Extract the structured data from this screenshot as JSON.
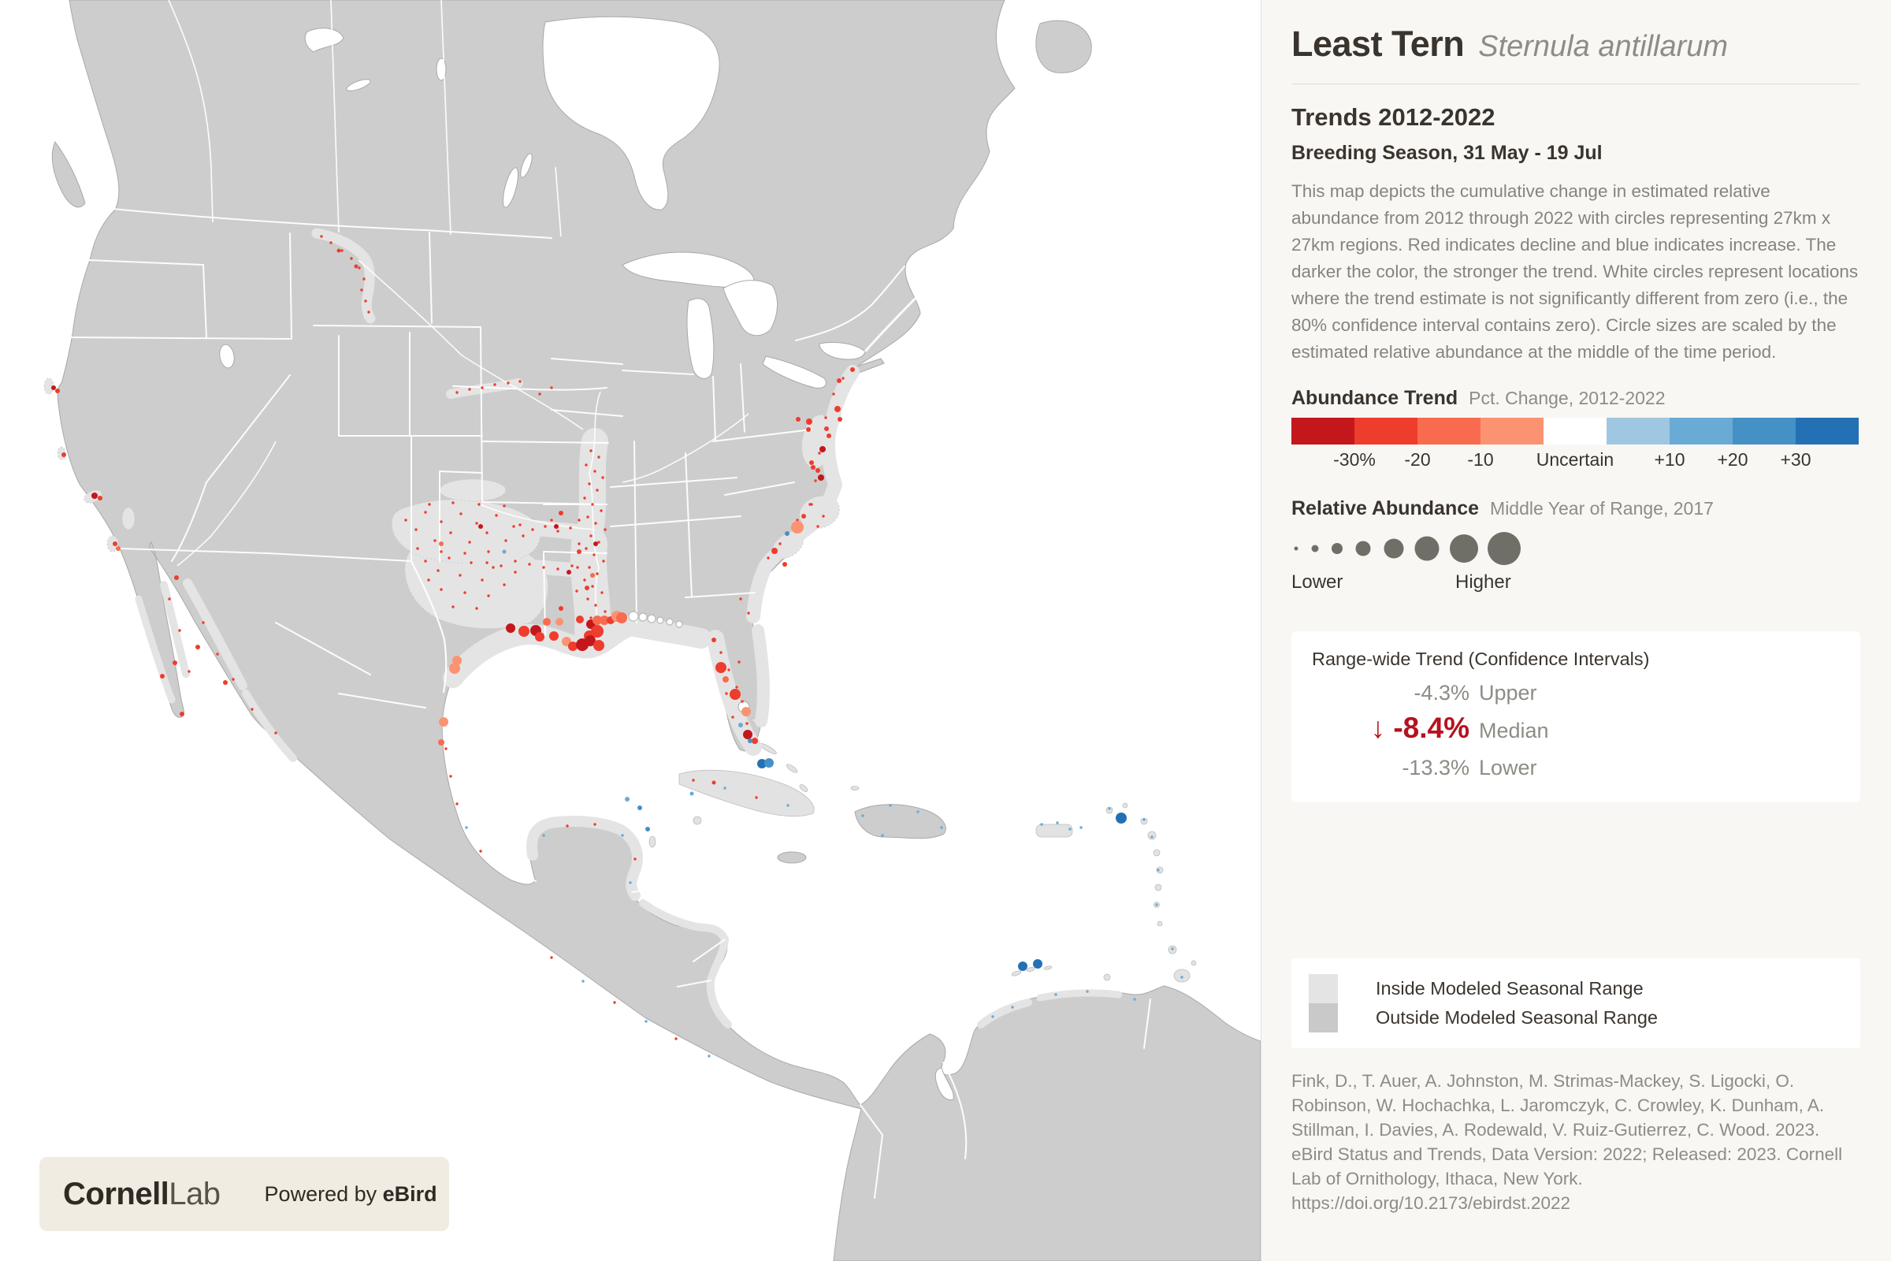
{
  "header": {
    "common_name": "Least Tern",
    "scientific_name": "Sternula antillarum",
    "trends_title": "Trends 2012-2022",
    "season": "Breeding Season, 31 May - 19 Jul"
  },
  "description": "This map depicts the cumulative change in estimated relative abundance from 2012 through 2022 with circles representing 27km x 27km regions. Red indicates decline and blue indicates increase. The darker the color, the stronger the trend. White circles represent locations where the trend estimate is not significantly different from zero (i.e., the 80% confidence interval contains zero). Circle sizes are scaled by the estimated relative abundance at the middle of the time period.",
  "abundance_trend": {
    "label": "Abundance Trend",
    "sublabel": "Pct. Change, 2012-2022",
    "scale_colors": [
      "#c4171c",
      "#ee3c2d",
      "#f96b4e",
      "#fb9372",
      "#ffffff",
      "#a0c7e1",
      "#69abd5",
      "#4591c5",
      "#2371b4"
    ],
    "tick_labels": [
      "-30%",
      "-20",
      "-10",
      "Uncertain",
      "+10",
      "+20",
      "+30"
    ]
  },
  "relative_abundance": {
    "label": "Relative Abundance",
    "sublabel": "Middle Year of Range, 2017",
    "lower_label": "Lower",
    "higher_label": "Higher",
    "circle_color": "#6f6f67"
  },
  "range_wide_trend": {
    "title": "Range-wide Trend (Confidence Intervals)",
    "upper": {
      "value": "-4.3%",
      "label": "Upper"
    },
    "median": {
      "arrow": "↓",
      "value": "-8.4%",
      "label": "Median"
    },
    "lower": {
      "value": "-13.3%",
      "label": "Lower"
    },
    "median_color": "#b5121f"
  },
  "range_legend": {
    "inside": {
      "label": "Inside Modeled Seasonal Range",
      "color": "#e4e4e4"
    },
    "outside": {
      "label": "Outside Modeled Seasonal Range",
      "color": "#c9c9c9"
    }
  },
  "citation": "Fink, D., T. Auer, A. Johnston, M. Strimas-Mackey, S. Ligocki, O. Robinson, W. Hochachka, L. Jaromczyk, C. Crowley, K. Dunham, A. Stillman, I. Davies, A. Rodewald, V. Ruiz-Gutierrez, C. Wood. 2023. eBird Status and Trends, Data Version: 2022; Released: 2023. Cornell Lab of Ornithology, Ithaca, New York. https://doi.org/10.2173/ebirdst.2022",
  "logo": {
    "brand_bold": "Cornell",
    "brand_light": "Lab",
    "powered_prefix": "Powered by ",
    "powered_bold": "eBird"
  },
  "map": {
    "land_color": "#cdcdcd",
    "inside_range_color": "#e4e4e4",
    "palette": [
      "#c4171c",
      "#ee3c2d",
      "#f96b4e",
      "#fb9372",
      "#ffffff",
      "#a0c7e1",
      "#69abd5",
      "#4591c5",
      "#2371b4"
    ],
    "points": [
      [
        648,
        797,
        6,
        0
      ],
      [
        665,
        801,
        7,
        1
      ],
      [
        680,
        800,
        7,
        0
      ],
      [
        685,
        808,
        6,
        1
      ],
      [
        703,
        807,
        6,
        1
      ],
      [
        719,
        814,
        6,
        3
      ],
      [
        727,
        820,
        6,
        1
      ],
      [
        739,
        818,
        8,
        0
      ],
      [
        748,
        807,
        7,
        1
      ],
      [
        750,
        792,
        6,
        0
      ],
      [
        758,
        787,
        6,
        2
      ],
      [
        767,
        787,
        6,
        2
      ],
      [
        775,
        787,
        5,
        1
      ],
      [
        783,
        782,
        7,
        3
      ],
      [
        758,
        801,
        8,
        1
      ],
      [
        749,
        813,
        7,
        0
      ],
      [
        760,
        819,
        7,
        1
      ],
      [
        694,
        789,
        5,
        2
      ],
      [
        710,
        789,
        5,
        3
      ],
      [
        736,
        786,
        5,
        1
      ],
      [
        789,
        784,
        7,
        2
      ],
      [
        804,
        782,
        6,
        4
      ],
      [
        816,
        783,
        5,
        4
      ],
      [
        827,
        785,
        5,
        4
      ],
      [
        838,
        787,
        4,
        4
      ],
      [
        850,
        789,
        4,
        4
      ],
      [
        862,
        792,
        4,
        4
      ],
      [
        915,
        847,
        7,
        1
      ],
      [
        933,
        881,
        7,
        1
      ],
      [
        947,
        903,
        6,
        3
      ],
      [
        949,
        932,
        6,
        0
      ],
      [
        958,
        940,
        4,
        1
      ],
      [
        906,
        812,
        3,
        1
      ],
      [
        921,
        862,
        4,
        2
      ],
      [
        940,
        920,
        3,
        6
      ],
      [
        967,
        969,
        6,
        8
      ],
      [
        976,
        968,
        6,
        7
      ],
      [
        952,
        940,
        3,
        7
      ],
      [
        580,
        838,
        6,
        3
      ],
      [
        577,
        848,
        7,
        3
      ],
      [
        563,
        916,
        6,
        3
      ],
      [
        560,
        942,
        4,
        2
      ],
      [
        1012,
        669,
        8,
        3
      ],
      [
        999,
        677,
        3,
        7
      ],
      [
        983,
        699,
        4,
        1
      ],
      [
        996,
        716,
        3,
        1
      ],
      [
        1082,
        469,
        3,
        1
      ],
      [
        1065,
        483,
        3,
        1
      ],
      [
        1063,
        519,
        4,
        1
      ],
      [
        1066,
        532,
        3,
        1
      ],
      [
        1049,
        544,
        3,
        1
      ],
      [
        1052,
        553,
        3,
        1
      ],
      [
        1027,
        535,
        4,
        1
      ],
      [
        1026,
        545,
        3,
        1
      ],
      [
        1013,
        532,
        3,
        1
      ],
      [
        1044,
        570,
        4,
        0
      ],
      [
        1030,
        587,
        3,
        1
      ],
      [
        1032,
        593,
        3,
        1
      ],
      [
        1038,
        597,
        3,
        1
      ],
      [
        1042,
        606,
        4,
        0
      ],
      [
        1020,
        655,
        3,
        1
      ],
      [
        68,
        492,
        3,
        0
      ],
      [
        73,
        496,
        3,
        1
      ],
      [
        81,
        577,
        3,
        1
      ],
      [
        120,
        629,
        4,
        0
      ],
      [
        127,
        632,
        3,
        1
      ],
      [
        146,
        690,
        3,
        1
      ],
      [
        150,
        696,
        3,
        2
      ],
      [
        224,
        733,
        3,
        1
      ],
      [
        251,
        821,
        3,
        1
      ],
      [
        222,
        841,
        3,
        1
      ],
      [
        206,
        858,
        3,
        1
      ],
      [
        286,
        866,
        3,
        1
      ],
      [
        231,
        906,
        3,
        1
      ],
      [
        1423,
        1038,
        7,
        8
      ],
      [
        1298,
        1226,
        6,
        8
      ],
      [
        1317,
        1223,
        6,
        8
      ],
      [
        812,
        1025,
        3,
        7
      ],
      [
        822,
        1052,
        3,
        7
      ],
      [
        796,
        1014,
        3,
        6
      ],
      [
        906,
        993,
        2.5,
        1
      ],
      [
        878,
        1007,
        2.5,
        6
      ],
      [
        712,
        651,
        3,
        1
      ],
      [
        706,
        668,
        3,
        0
      ],
      [
        735,
        700,
        3,
        1
      ],
      [
        722,
        726,
        3,
        0
      ],
      [
        745,
        746,
        3,
        1
      ],
      [
        712,
        772,
        3,
        1
      ],
      [
        756,
        690,
        3,
        0
      ],
      [
        752,
        730,
        3,
        2
      ],
      [
        610,
        668,
        3,
        0
      ],
      [
        560,
        690,
        3,
        2
      ],
      [
        640,
        700,
        2.5,
        6
      ],
      [
        430,
        318,
        2.5,
        1
      ],
      [
        452,
        338,
        2.5,
        1
      ]
    ],
    "stipples": [
      [
        750,
        572
      ],
      [
        760,
        580
      ],
      [
        744,
        590
      ],
      [
        755,
        598
      ],
      [
        765,
        606
      ],
      [
        748,
        614
      ],
      [
        758,
        622
      ],
      [
        742,
        632
      ],
      [
        752,
        640
      ],
      [
        763,
        648
      ],
      [
        746,
        656
      ],
      [
        756,
        664
      ],
      [
        768,
        672
      ],
      [
        750,
        680
      ],
      [
        760,
        688
      ],
      [
        744,
        696
      ],
      [
        754,
        704
      ],
      [
        766,
        712
      ],
      [
        748,
        720
      ],
      [
        758,
        728
      ],
      [
        742,
        736
      ],
      [
        752,
        744
      ],
      [
        764,
        752
      ],
      [
        746,
        760
      ],
      [
        756,
        768
      ],
      [
        768,
        776
      ],
      [
        750,
        784
      ],
      [
        735,
        660
      ],
      [
        735,
        690
      ],
      [
        733,
        720
      ],
      [
        732,
        750
      ],
      [
        660,
        666
      ],
      [
        676,
        672
      ],
      [
        692,
        668
      ],
      [
        708,
        674
      ],
      [
        724,
        670
      ],
      [
        700,
        660
      ],
      [
        618,
        714
      ],
      [
        636,
        718
      ],
      [
        654,
        712
      ],
      [
        672,
        716
      ],
      [
        690,
        720
      ],
      [
        708,
        722
      ],
      [
        726,
        718
      ],
      [
        515,
        660
      ],
      [
        528,
        672
      ],
      [
        540,
        650
      ],
      [
        552,
        686
      ],
      [
        560,
        662
      ],
      [
        572,
        676
      ],
      [
        585,
        652
      ],
      [
        596,
        688
      ],
      [
        605,
        664
      ],
      [
        618,
        676
      ],
      [
        630,
        654
      ],
      [
        642,
        686
      ],
      [
        652,
        668
      ],
      [
        664,
        680
      ],
      [
        530,
        696
      ],
      [
        560,
        700
      ],
      [
        590,
        702
      ],
      [
        620,
        700
      ],
      [
        545,
        640
      ],
      [
        575,
        638
      ],
      [
        608,
        640
      ],
      [
        640,
        642
      ],
      [
        580,
        498
      ],
      [
        596,
        494
      ],
      [
        612,
        492
      ],
      [
        628,
        488
      ],
      [
        645,
        486
      ],
      [
        660,
        484
      ],
      [
        408,
        300
      ],
      [
        420,
        308
      ],
      [
        434,
        318
      ],
      [
        446,
        328
      ],
      [
        456,
        340
      ],
      [
        462,
        354
      ],
      [
        459,
        368
      ],
      [
        464,
        382
      ],
      [
        468,
        396
      ],
      [
        540,
        712
      ],
      [
        556,
        724
      ],
      [
        570,
        708
      ],
      [
        584,
        730
      ],
      [
        598,
        714
      ],
      [
        612,
        736
      ],
      [
        626,
        720
      ],
      [
        640,
        742
      ],
      [
        654,
        726
      ],
      [
        560,
        748
      ],
      [
        590,
        752
      ],
      [
        620,
        756
      ],
      [
        544,
        736
      ],
      [
        575,
        770
      ],
      [
        605,
        772
      ],
      [
        915,
        828
      ],
      [
        925,
        850
      ],
      [
        935,
        872
      ],
      [
        942,
        890
      ],
      [
        930,
        910
      ],
      [
        948,
        918
      ],
      [
        938,
        840
      ],
      [
        922,
        880
      ],
      [
        1070,
        480
      ],
      [
        1058,
        500
      ],
      [
        1048,
        530
      ],
      [
        1040,
        575
      ],
      [
        1035,
        610
      ],
      [
        1028,
        640
      ],
      [
        1012,
        660
      ],
      [
        990,
        690
      ],
      [
        975,
        708
      ],
      [
        1030,
        640
      ],
      [
        1045,
        655
      ],
      [
        1038,
        668
      ],
      [
        215,
        760
      ],
      [
        228,
        800
      ],
      [
        240,
        852
      ],
      [
        258,
        790
      ],
      [
        276,
        830
      ],
      [
        296,
        862
      ],
      [
        320,
        900
      ],
      [
        350,
        930
      ],
      [
        690,
        1060,
        6
      ],
      [
        720,
        1048
      ],
      [
        755,
        1046
      ],
      [
        790,
        1060,
        6
      ],
      [
        806,
        1090
      ],
      [
        800,
        1120,
        6
      ],
      [
        880,
        990
      ],
      [
        920,
        1000,
        6
      ],
      [
        960,
        1012
      ],
      [
        1000,
        1022,
        6
      ],
      [
        1095,
        1035,
        6
      ],
      [
        1130,
        1022,
        6
      ],
      [
        1165,
        1030,
        6
      ],
      [
        1195,
        1050,
        6
      ],
      [
        1120,
        1060,
        6
      ],
      [
        1322,
        1046,
        6
      ],
      [
        1342,
        1044,
        6
      ],
      [
        1358,
        1052,
        6
      ],
      [
        1372,
        1050,
        6
      ],
      [
        1408,
        1026,
        6
      ],
      [
        1452,
        1040,
        6
      ],
      [
        1462,
        1062,
        6
      ],
      [
        1470,
        1104,
        6
      ],
      [
        1468,
        1148,
        6
      ],
      [
        1488,
        1204,
        6
      ],
      [
        1260,
        1290,
        6
      ],
      [
        1285,
        1278,
        6
      ],
      [
        1340,
        1262,
        6
      ],
      [
        1380,
        1258,
        6
      ],
      [
        1440,
        1268,
        6
      ],
      [
        1500,
        1240,
        6
      ],
      [
        700,
        1215
      ],
      [
        740,
        1245,
        6
      ],
      [
        780,
        1272
      ],
      [
        820,
        1296,
        6
      ],
      [
        858,
        1318
      ],
      [
        900,
        1340,
        6
      ],
      [
        566,
        950
      ],
      [
        572,
        985
      ],
      [
        580,
        1020
      ],
      [
        592,
        1050,
        6
      ],
      [
        610,
        1080
      ],
      [
        685,
        500
      ],
      [
        700,
        492
      ],
      [
        940,
        760
      ],
      [
        950,
        778
      ]
    ]
  }
}
